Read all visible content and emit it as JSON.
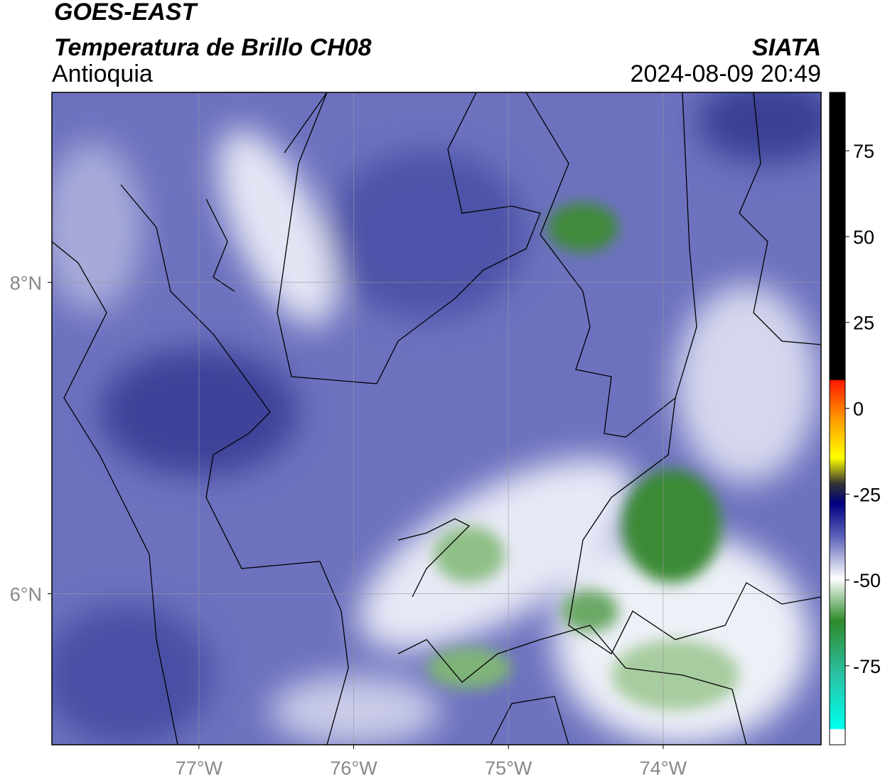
{
  "chart_data": {
    "type": "map",
    "title": "GOES-EAST",
    "subtitle": "Temperatura de Brillo CH08",
    "region": "Antioquia",
    "source": "SIATA",
    "datetime": "2024-08-09 20:49",
    "xlim": [
      -77.95,
      -72.98
    ],
    "ylim": [
      5.03,
      9.22
    ],
    "xticks": [
      {
        "value": -77,
        "label": "77°W"
      },
      {
        "value": -76,
        "label": "76°W"
      },
      {
        "value": -75,
        "label": "75°W"
      },
      {
        "value": -74,
        "label": "74°W"
      }
    ],
    "yticks": [
      {
        "value": 8,
        "label": "8°N"
      },
      {
        "value": 6,
        "label": "6°N"
      }
    ],
    "grid": true,
    "colorbar": {
      "lim": [
        -98,
        92
      ],
      "ticks": [
        75,
        50,
        25,
        0,
        -25,
        -50,
        -75
      ]
    }
  }
}
